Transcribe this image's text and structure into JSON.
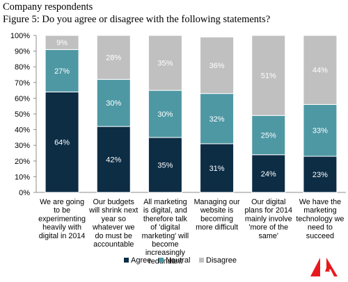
{
  "header": {
    "subtitle": "Company respondents",
    "title": "Figure 5: Do you agree or disagree with the following statements?"
  },
  "chart_data": {
    "type": "bar",
    "stacked": true,
    "normalized": true,
    "categories": [
      [
        "We are going",
        "to be",
        "experimenting",
        "heavily with",
        "digital in 2014"
      ],
      [
        "Our budgets",
        "will shrink next",
        "year so",
        "whatever we",
        "do must be",
        "accountable"
      ],
      [
        "All marketing",
        "is digital, and",
        "therefore talk",
        "of 'digital",
        "marketing' will",
        "become",
        "increasingly",
        "redundant"
      ],
      [
        "Managing our",
        "website is",
        "becoming",
        "more difficult"
      ],
      [
        "Our digital",
        "plans for 2014",
        "mainly involve",
        "'more of the",
        "same'"
      ],
      [
        "We have the",
        "marketing",
        "technology we",
        "need to",
        "succeed"
      ]
    ],
    "series": [
      {
        "name": "Agree",
        "color": "#0d2d45",
        "values": [
          64,
          42,
          35,
          31,
          24,
          23
        ],
        "labels": [
          "64%",
          "42%",
          "35%",
          "31%",
          "24%",
          "23%"
        ]
      },
      {
        "name": "Neutral",
        "color": "#4e98a4",
        "values": [
          27,
          30,
          30,
          32,
          25,
          33
        ],
        "labels": [
          "27%",
          "30%",
          "30%",
          "32%",
          "25%",
          "33%"
        ]
      },
      {
        "name": "Disagree",
        "color": "#c0c0c0",
        "values": [
          9,
          28,
          35,
          36,
          51,
          44
        ],
        "labels": [
          "9%",
          "28%",
          "35%",
          "36%",
          "51%",
          "44%"
        ]
      }
    ],
    "ylim": [
      0,
      100
    ],
    "yticks": [
      "0%",
      "10%",
      "20%",
      "30%",
      "40%",
      "50%",
      "60%",
      "70%",
      "80%",
      "90%",
      "100%"
    ],
    "grid": false,
    "legend_position": "bottom"
  },
  "logo": {
    "name": "adobe-logo",
    "color": "#e8191e"
  }
}
